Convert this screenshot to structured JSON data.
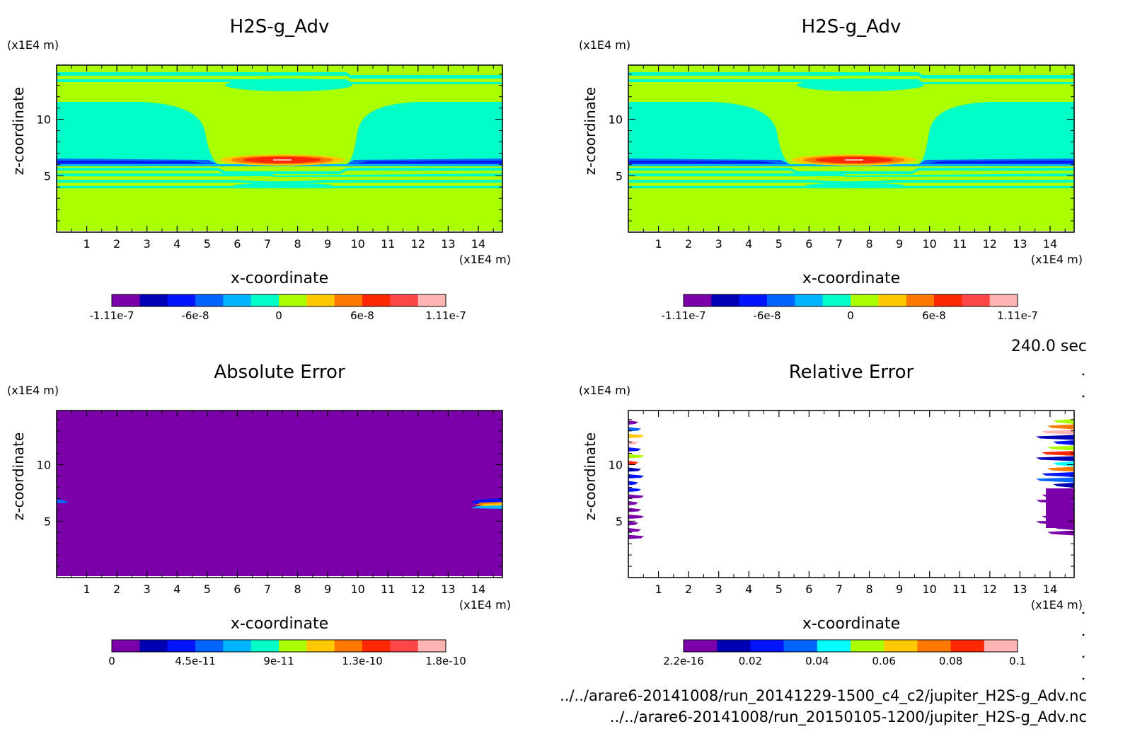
{
  "time_label": "240.0 sec",
  "files": [
    "../../arare6-20141008/run_20141229-1500_c4_c2/jupiter_H2S-g_Adv.nc",
    "../../arare6-20141008/run_20150105-1200/jupiter_H2S-g_Adv.nc"
  ],
  "panels": [
    {
      "title": "H2S-g_Adv",
      "xlabel": "x-coordinate",
      "ylabel": "z-coordinate",
      "xunit": "(x1E4 m)",
      "yunit": "(x1E4 m)",
      "xticks": [
        "1",
        "2",
        "3",
        "4",
        "5",
        "6",
        "7",
        "8",
        "9",
        "10",
        "11",
        "12",
        "13",
        "14"
      ],
      "yticks": [
        "5",
        "10"
      ],
      "colorbar": [
        "-1.11e-7",
        "-6e-8",
        "0",
        "6e-8",
        "1.11e-7"
      ]
    },
    {
      "title": "H2S-g_Adv",
      "xlabel": "x-coordinate",
      "ylabel": "z-coordinate",
      "xunit": "(x1E4 m)",
      "yunit": "(x1E4 m)",
      "xticks": [
        "1",
        "2",
        "3",
        "4",
        "5",
        "6",
        "7",
        "8",
        "9",
        "10",
        "11",
        "12",
        "13",
        "14"
      ],
      "yticks": [
        "5",
        "10"
      ],
      "colorbar": [
        "-1.11e-7",
        "-6e-8",
        "0",
        "6e-8",
        "1.11e-7"
      ]
    },
    {
      "title": "Absolute Error",
      "xlabel": "x-coordinate",
      "ylabel": "z-coordinate",
      "xunit": "(x1E4 m)",
      "yunit": "(x1E4 m)",
      "xticks": [
        "1",
        "2",
        "3",
        "4",
        "5",
        "6",
        "7",
        "8",
        "9",
        "10",
        "11",
        "12",
        "13",
        "14"
      ],
      "yticks": [
        "5",
        "10"
      ],
      "colorbar": [
        "0",
        "4.5e-11",
        "9e-11",
        "1.3e-10",
        "1.8e-10"
      ]
    },
    {
      "title": "Relative Error",
      "xlabel": "x-coordinate",
      "ylabel": "z-coordinate",
      "xunit": "(x1E4 m)",
      "yunit": "(x1E4 m)",
      "xticks": [
        "1",
        "2",
        "3",
        "4",
        "5",
        "6",
        "7",
        "8",
        "9",
        "10",
        "11",
        "12",
        "13",
        "14"
      ],
      "yticks": [
        "5",
        "10"
      ],
      "colorbar": [
        "2.2e-16",
        "0.02",
        "0.04",
        "0.06",
        "0.08",
        "0.1"
      ]
    }
  ],
  "chart_data": [
    {
      "type": "heatmap",
      "title": "H2S-g_Adv",
      "xlabel": "x-coordinate",
      "ylabel": "z-coordinate",
      "xlim": [
        0,
        14.8
      ],
      "ylim": [
        0,
        14.8
      ],
      "colorbar": {
        "ticks": [
          -1.11e-07,
          -6e-08,
          0,
          6e-08,
          1.11e-07
        ],
        "colors": [
          "#7b00aa",
          "#0000b4",
          "#0014ff",
          "#0064ff",
          "#00b4ff",
          "#00ffc8",
          "#aaff00",
          "#ffc800",
          "#ff7800",
          "#ff2800",
          "#ff4646",
          "#ffb4b4"
        ]
      }
    },
    {
      "type": "heatmap",
      "title": "H2S-g_Adv",
      "xlabel": "x-coordinate",
      "ylabel": "z-coordinate",
      "xlim": [
        0,
        14.8
      ],
      "ylim": [
        0,
        14.8
      ],
      "colorbar": {
        "ticks": [
          -1.11e-07,
          -6e-08,
          0,
          6e-08,
          1.11e-07
        ],
        "colors": [
          "#7b00aa",
          "#0000b4",
          "#0014ff",
          "#0064ff",
          "#00b4ff",
          "#00ffc8",
          "#aaff00",
          "#ffc800",
          "#ff7800",
          "#ff2800",
          "#ff4646",
          "#ffb4b4"
        ]
      }
    },
    {
      "type": "heatmap",
      "title": "Absolute Error",
      "xlabel": "x-coordinate",
      "ylabel": "z-coordinate",
      "xlim": [
        0,
        14.8
      ],
      "ylim": [
        0,
        14.8
      ],
      "colorbar": {
        "ticks": [
          0,
          4.5e-11,
          9e-11,
          1.3e-10,
          1.8e-10
        ],
        "colors": [
          "#7b00aa",
          "#0000b4",
          "#0014ff",
          "#0064ff",
          "#00b4ff",
          "#00ffc8",
          "#aaff00",
          "#ffc800",
          "#ff7800",
          "#ff2800",
          "#ff4646",
          "#ffb4b4"
        ]
      }
    },
    {
      "type": "heatmap",
      "title": "Relative Error",
      "xlabel": "x-coordinate",
      "ylabel": "z-coordinate",
      "xlim": [
        0,
        14.8
      ],
      "ylim": [
        0,
        14.8
      ],
      "colorbar": {
        "ticks": [
          2.2e-16,
          0.02,
          0.04,
          0.06,
          0.08,
          0.1
        ],
        "colors": [
          "#7b00aa",
          "#0000b4",
          "#0014ff",
          "#0064ff",
          "#00ffff",
          "#aaff00",
          "#ffc800",
          "#ff7800",
          "#ff2800",
          "#ffb4b4"
        ]
      }
    }
  ]
}
